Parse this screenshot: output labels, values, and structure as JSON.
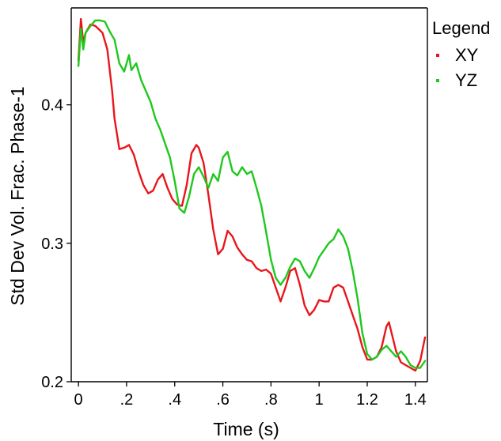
{
  "chart_data": {
    "type": "line",
    "xlabel": "Time (s)",
    "ylabel": "Std Dev Vol. Frac. Phase-1",
    "xlim": [
      -0.03,
      1.45
    ],
    "ylim": [
      0.2,
      0.47
    ],
    "xticks": [
      {
        "value": 0,
        "label": "0"
      },
      {
        "value": 0.2,
        "label": ".2"
      },
      {
        "value": 0.4,
        "label": ".4"
      },
      {
        "value": 0.6,
        "label": ".6"
      },
      {
        "value": 0.8,
        "label": ".8"
      },
      {
        "value": 1.0,
        "label": "1"
      },
      {
        "value": 1.2,
        "label": "1.2"
      },
      {
        "value": 1.4,
        "label": "1.4"
      }
    ],
    "yticks": [
      {
        "value": 0.2,
        "label": "0.2"
      },
      {
        "value": 0.3,
        "label": "0.3"
      },
      {
        "value": 0.4,
        "label": "0.4"
      }
    ],
    "grid": false,
    "legend": {
      "title": "Legend",
      "position": "outside-right"
    },
    "series": [
      {
        "name": "XY",
        "color": "#e8161c",
        "points": [
          [
            0,
            0.432
          ],
          [
            0.01,
            0.462
          ],
          [
            0.02,
            0.445
          ],
          [
            0.03,
            0.452
          ],
          [
            0.05,
            0.458
          ],
          [
            0.07,
            0.457
          ],
          [
            0.1,
            0.452
          ],
          [
            0.12,
            0.44
          ],
          [
            0.14,
            0.41
          ],
          [
            0.15,
            0.39
          ],
          [
            0.17,
            0.368
          ],
          [
            0.19,
            0.369
          ],
          [
            0.21,
            0.371
          ],
          [
            0.23,
            0.364
          ],
          [
            0.25,
            0.352
          ],
          [
            0.27,
            0.342
          ],
          [
            0.29,
            0.336
          ],
          [
            0.31,
            0.338
          ],
          [
            0.33,
            0.346
          ],
          [
            0.35,
            0.35
          ],
          [
            0.37,
            0.34
          ],
          [
            0.39,
            0.332
          ],
          [
            0.41,
            0.328
          ],
          [
            0.43,
            0.327
          ],
          [
            0.45,
            0.342
          ],
          [
            0.47,
            0.365
          ],
          [
            0.49,
            0.371
          ],
          [
            0.5,
            0.369
          ],
          [
            0.52,
            0.358
          ],
          [
            0.54,
            0.335
          ],
          [
            0.56,
            0.31
          ],
          [
            0.58,
            0.292
          ],
          [
            0.6,
            0.296
          ],
          [
            0.62,
            0.309
          ],
          [
            0.64,
            0.305
          ],
          [
            0.66,
            0.297
          ],
          [
            0.68,
            0.292
          ],
          [
            0.7,
            0.288
          ],
          [
            0.72,
            0.287
          ],
          [
            0.74,
            0.282
          ],
          [
            0.76,
            0.28
          ],
          [
            0.78,
            0.281
          ],
          [
            0.8,
            0.278
          ],
          [
            0.82,
            0.268
          ],
          [
            0.84,
            0.258
          ],
          [
            0.86,
            0.268
          ],
          [
            0.88,
            0.28
          ],
          [
            0.9,
            0.282
          ],
          [
            0.92,
            0.27
          ],
          [
            0.94,
            0.255
          ],
          [
            0.96,
            0.248
          ],
          [
            0.98,
            0.252
          ],
          [
            1.0,
            0.259
          ],
          [
            1.02,
            0.258
          ],
          [
            1.04,
            0.258
          ],
          [
            1.06,
            0.268
          ],
          [
            1.08,
            0.27
          ],
          [
            1.1,
            0.268
          ],
          [
            1.12,
            0.258
          ],
          [
            1.14,
            0.248
          ],
          [
            1.16,
            0.238
          ],
          [
            1.18,
            0.225
          ],
          [
            1.2,
            0.216
          ],
          [
            1.22,
            0.216
          ],
          [
            1.24,
            0.218
          ],
          [
            1.26,
            0.225
          ],
          [
            1.28,
            0.24
          ],
          [
            1.29,
            0.243
          ],
          [
            1.3,
            0.236
          ],
          [
            1.32,
            0.222
          ],
          [
            1.34,
            0.214
          ],
          [
            1.36,
            0.212
          ],
          [
            1.38,
            0.21
          ],
          [
            1.4,
            0.208
          ],
          [
            1.42,
            0.215
          ],
          [
            1.44,
            0.232
          ]
        ]
      },
      {
        "name": "YZ",
        "color": "#1ec81e",
        "points": [
          [
            0,
            0.428
          ],
          [
            0.01,
            0.455
          ],
          [
            0.02,
            0.44
          ],
          [
            0.03,
            0.452
          ],
          [
            0.05,
            0.457
          ],
          [
            0.07,
            0.461
          ],
          [
            0.09,
            0.461
          ],
          [
            0.11,
            0.46
          ],
          [
            0.13,
            0.453
          ],
          [
            0.15,
            0.447
          ],
          [
            0.17,
            0.43
          ],
          [
            0.19,
            0.424
          ],
          [
            0.21,
            0.436
          ],
          [
            0.22,
            0.425
          ],
          [
            0.24,
            0.43
          ],
          [
            0.26,
            0.418
          ],
          [
            0.28,
            0.41
          ],
          [
            0.3,
            0.402
          ],
          [
            0.32,
            0.39
          ],
          [
            0.34,
            0.382
          ],
          [
            0.36,
            0.372
          ],
          [
            0.38,
            0.362
          ],
          [
            0.4,
            0.345
          ],
          [
            0.42,
            0.325
          ],
          [
            0.44,
            0.322
          ],
          [
            0.46,
            0.334
          ],
          [
            0.48,
            0.35
          ],
          [
            0.5,
            0.355
          ],
          [
            0.52,
            0.348
          ],
          [
            0.54,
            0.34
          ],
          [
            0.56,
            0.35
          ],
          [
            0.58,
            0.345
          ],
          [
            0.6,
            0.362
          ],
          [
            0.62,
            0.366
          ],
          [
            0.64,
            0.352
          ],
          [
            0.66,
            0.349
          ],
          [
            0.68,
            0.355
          ],
          [
            0.7,
            0.35
          ],
          [
            0.72,
            0.352
          ],
          [
            0.74,
            0.34
          ],
          [
            0.76,
            0.327
          ],
          [
            0.78,
            0.308
          ],
          [
            0.8,
            0.288
          ],
          [
            0.82,
            0.275
          ],
          [
            0.84,
            0.27
          ],
          [
            0.86,
            0.275
          ],
          [
            0.88,
            0.283
          ],
          [
            0.9,
            0.289
          ],
          [
            0.92,
            0.287
          ],
          [
            0.94,
            0.28
          ],
          [
            0.96,
            0.275
          ],
          [
            0.98,
            0.282
          ],
          [
            1.0,
            0.29
          ],
          [
            1.02,
            0.295
          ],
          [
            1.04,
            0.3
          ],
          [
            1.06,
            0.303
          ],
          [
            1.08,
            0.31
          ],
          [
            1.1,
            0.305
          ],
          [
            1.12,
            0.296
          ],
          [
            1.14,
            0.28
          ],
          [
            1.16,
            0.26
          ],
          [
            1.18,
            0.235
          ],
          [
            1.2,
            0.22
          ],
          [
            1.22,
            0.216
          ],
          [
            1.24,
            0.218
          ],
          [
            1.26,
            0.223
          ],
          [
            1.28,
            0.226
          ],
          [
            1.3,
            0.222
          ],
          [
            1.32,
            0.218
          ],
          [
            1.34,
            0.222
          ],
          [
            1.36,
            0.218
          ],
          [
            1.38,
            0.212
          ],
          [
            1.4,
            0.21
          ],
          [
            1.42,
            0.21
          ],
          [
            1.44,
            0.215
          ]
        ]
      }
    ]
  }
}
